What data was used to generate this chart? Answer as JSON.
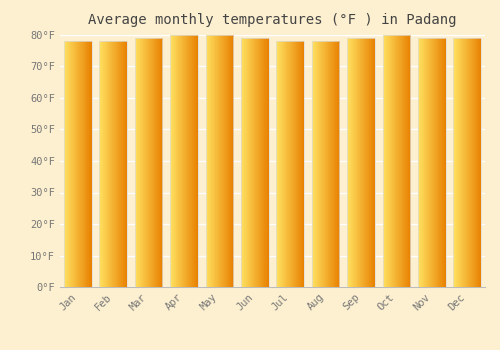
{
  "title": "Average monthly temperatures (°F ) in Padang",
  "months": [
    "Jan",
    "Feb",
    "Mar",
    "Apr",
    "May",
    "Jun",
    "Jul",
    "Aug",
    "Sep",
    "Oct",
    "Nov",
    "Dec"
  ],
  "values": [
    78,
    78,
    79,
    80,
    80,
    79,
    78,
    78,
    79,
    80,
    79,
    79
  ],
  "ylim": [
    0,
    80
  ],
  "yticks": [
    0,
    10,
    20,
    30,
    40,
    50,
    60,
    70,
    80
  ],
  "ytick_labels": [
    "0°F",
    "10°F",
    "20°F",
    "30°F",
    "40°F",
    "50°F",
    "60°F",
    "70°F",
    "80°F"
  ],
  "background_color": "#fdf0d0",
  "bar_color_left": "#FFD966",
  "bar_color_right": "#E88B00",
  "bar_edge_color": "#dddddd",
  "grid_color": "#ffffff",
  "title_fontsize": 10,
  "tick_fontsize": 7.5,
  "font_color": "#777777",
  "title_color": "#444444"
}
